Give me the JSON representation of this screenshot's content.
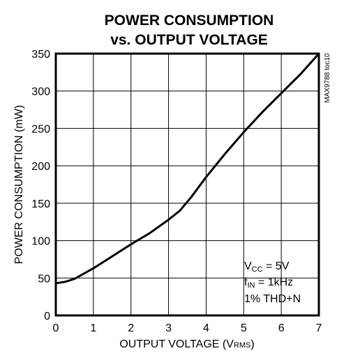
{
  "chart_data": {
    "type": "line",
    "title": "POWER CONSUMPTION",
    "subtitle": "vs. OUTPUT VOLTAGE",
    "xlabel": "OUTPUT VOLTAGE (V",
    "xlabel_sub": "RMS",
    "xlabel_close": ")",
    "ylabel": "POWER CONSUMPTION (mW)",
    "xlim": [
      0,
      7
    ],
    "ylim": [
      0,
      350
    ],
    "x_ticks": [
      "0",
      "1",
      "2",
      "3",
      "4",
      "5",
      "6",
      "7"
    ],
    "y_ticks": [
      "0",
      "50",
      "100",
      "150",
      "200",
      "250",
      "300",
      "350"
    ],
    "grid": true,
    "series": [
      {
        "x": [
          0,
          0.25,
          0.5,
          0.75,
          1,
          1.5,
          2,
          2.5,
          3,
          3.3,
          3.6,
          4,
          4.5,
          5,
          5.5,
          6,
          6.5,
          7
        ],
        "y": [
          43,
          45,
          49,
          56,
          63,
          79,
          95,
          110,
          128,
          140,
          158,
          185,
          216,
          245,
          272,
          297,
          322,
          350
        ]
      }
    ],
    "conditions": {
      "vcc_main": "V",
      "vcc_sub": "CC",
      "vcc_rest": " = 5V",
      "fin_main": "f",
      "fin_sub": "IN",
      "fin_rest": " = 1kHz",
      "thd": "1% THD+N"
    },
    "figure_id": "MAX9788 toc10",
    "colors": {
      "line": "#000000",
      "grid": "#000000",
      "background": "#ffffff"
    }
  }
}
